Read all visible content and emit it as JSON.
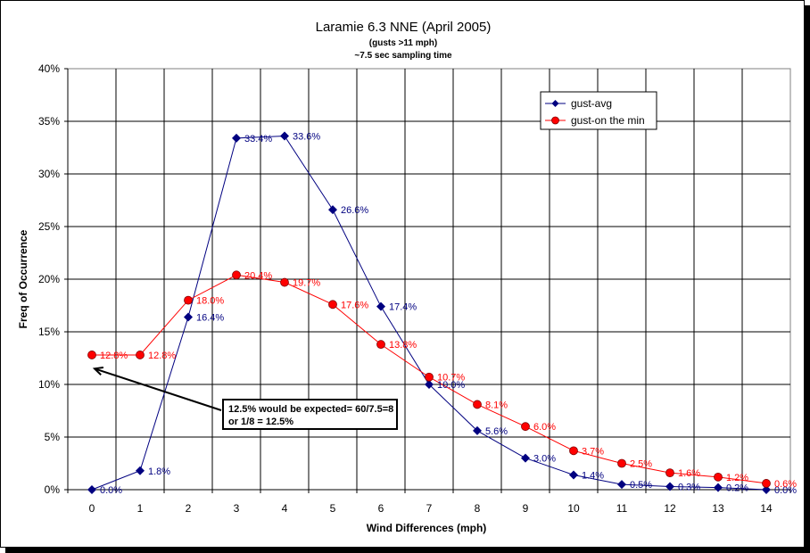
{
  "chart_data": {
    "type": "line",
    "title": "Laramie 6.3 NNE (April 2005)",
    "subtitle_lines": [
      "(gusts >11 mph)",
      "~7.5 sec sampling time"
    ],
    "xlabel": "Wind Differences (mph)",
    "ylabel": "Freq of Occurrence",
    "x": [
      0,
      1,
      2,
      3,
      4,
      5,
      6,
      7,
      8,
      9,
      10,
      11,
      12,
      13,
      14
    ],
    "xlim": [
      -0.5,
      14.5
    ],
    "ylim": [
      0,
      40
    ],
    "y_ticks": [
      "0%",
      "5%",
      "10%",
      "15%",
      "20%",
      "25%",
      "30%",
      "35%",
      "40%"
    ],
    "grid": true,
    "legend_position": "top-right",
    "series": [
      {
        "name": "gust-avg",
        "color": "#000080",
        "marker": "diamond",
        "values": [
          0.0,
          1.8,
          16.4,
          33.4,
          33.6,
          26.6,
          17.4,
          10.0,
          5.6,
          3.0,
          1.4,
          0.5,
          0.3,
          0.2,
          0.0
        ],
        "labels": [
          "0.0%",
          "1.8%",
          "16.4%",
          "33.4%",
          "33.6%",
          "26.6%",
          "17.4%",
          "10.0%",
          "5.6%",
          "3.0%",
          "1.4%",
          "0.5%",
          "0.3%",
          "0.2%",
          "0.0%"
        ]
      },
      {
        "name": "gust-on the min",
        "color": "#ff0000",
        "marker": "circle",
        "values": [
          12.8,
          12.8,
          18.0,
          20.4,
          19.7,
          17.6,
          13.8,
          10.7,
          8.1,
          6.0,
          3.7,
          2.5,
          1.6,
          1.2,
          0.6
        ],
        "labels": [
          "12.8%",
          "12.8%",
          "18.0%",
          "20.4%",
          "19.7%",
          "17.6%",
          "13.8%",
          "10.7%",
          "8.1%",
          "6.0%",
          "3.7%",
          "2.5%",
          "1.6%",
          "1.2%",
          "0.6%"
        ]
      }
    ],
    "annotation": {
      "lines": [
        "12.5% would be expected= 60/7.5=8",
        "or 1/8 = 12.5%"
      ],
      "arrow_target": {
        "x": 0,
        "y": 11.5
      }
    }
  }
}
